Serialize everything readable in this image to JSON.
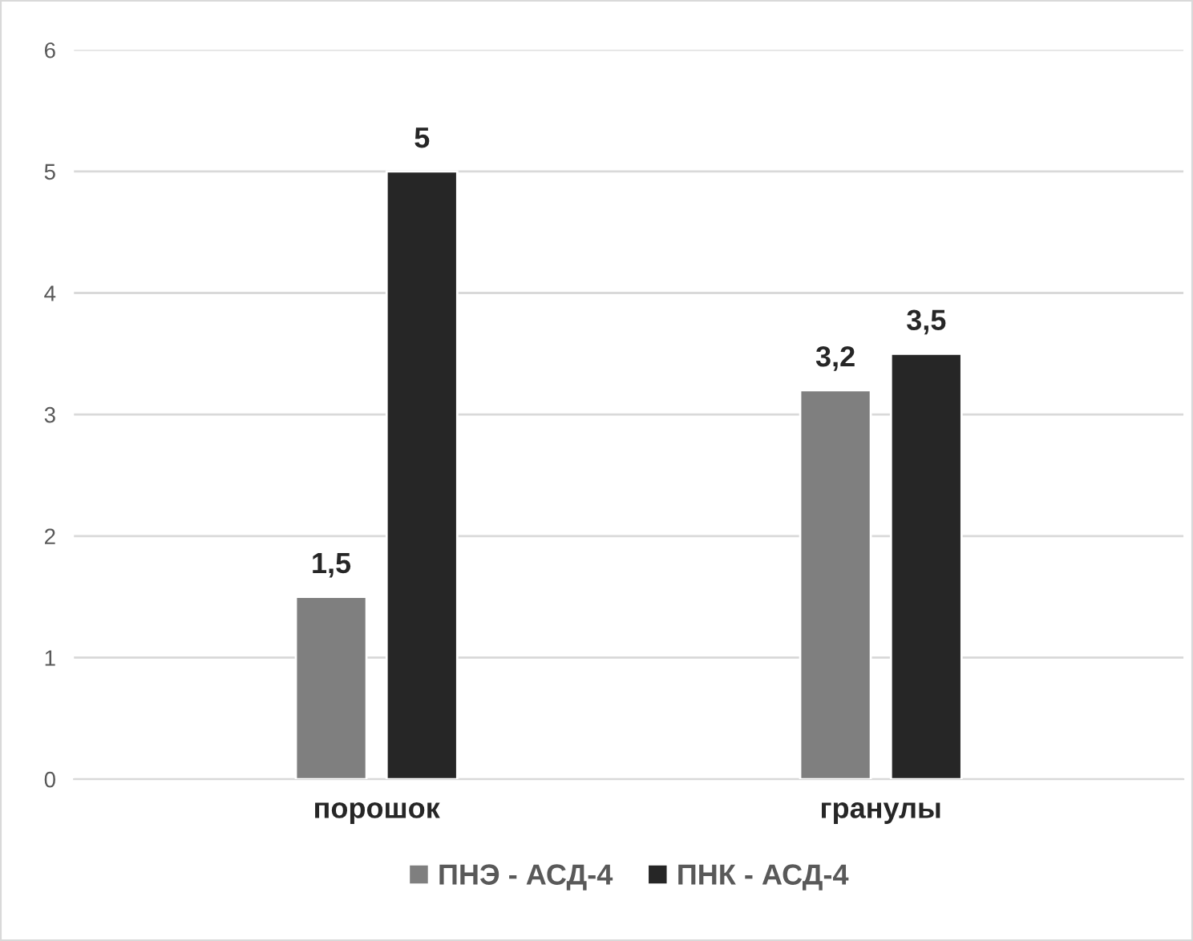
{
  "chart_data": {
    "type": "bar",
    "categories": [
      "порошок",
      "гранулы"
    ],
    "series": [
      {
        "name": "ПНЭ - АСД-4",
        "color": "#7f7f7f",
        "values": [
          1.5,
          3.2
        ],
        "value_labels": [
          "1,5",
          "3,2"
        ]
      },
      {
        "name": "ПНК - АСД-4",
        "color": "#262626",
        "values": [
          5,
          3.5
        ],
        "value_labels": [
          "5",
          "3,5"
        ]
      }
    ],
    "ylim": [
      0,
      6
    ],
    "yticks": [
      0,
      1,
      2,
      3,
      4,
      5,
      6
    ],
    "grid": "y",
    "legend": "bottom"
  }
}
